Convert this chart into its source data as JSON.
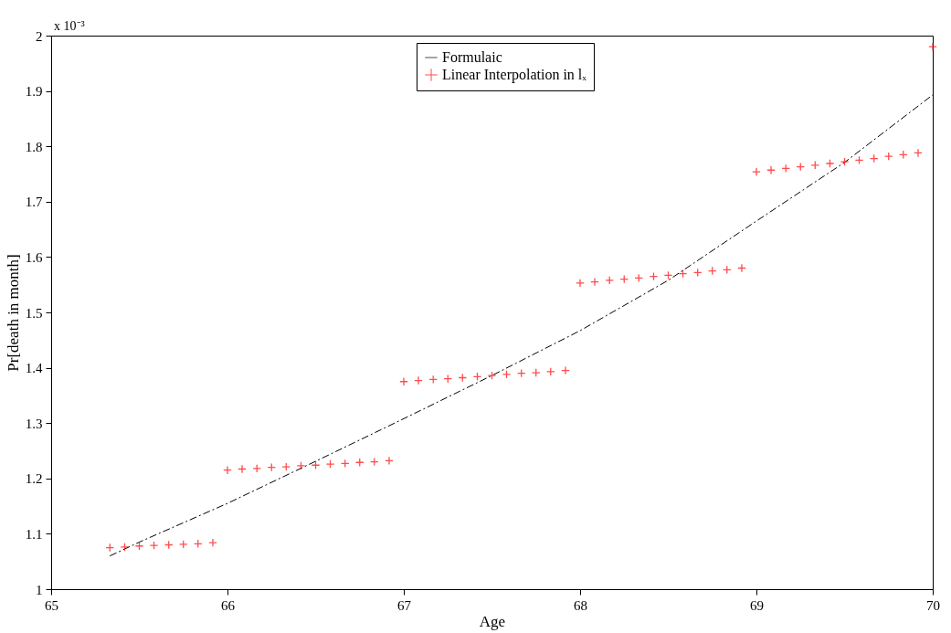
{
  "chart_data": {
    "type": "scatter",
    "xlabel": "Age",
    "ylabel": "Pr[death in month]",
    "annotations": [
      "x 10⁻³"
    ],
    "xlim": [
      65,
      70
    ],
    "xticks": [
      65,
      66,
      67,
      68,
      69,
      70
    ],
    "ylim": [
      1,
      2
    ],
    "yticks": [
      1,
      1.1,
      1.2,
      1.3,
      1.4,
      1.5,
      1.6,
      1.7,
      1.8,
      1.9,
      2
    ],
    "grid": false,
    "legend": "top",
    "series": [
      {
        "name": "Formulaic",
        "type": "line",
        "line_style": "dashed",
        "marker": "none",
        "color": "#000000",
        "x": [
          65.333,
          65.5,
          66,
          66.5,
          67,
          67.5,
          68,
          68.5,
          69,
          69.5,
          70
        ],
        "values": [
          1.06,
          1.085,
          1.155,
          1.231,
          1.308,
          1.386,
          1.467,
          1.558,
          1.665,
          1.771,
          1.893
        ]
      },
      {
        "name": "Linear Interpolation in lₓ",
        "marker": "cross",
        "color": "#ff0000",
        "x": [
          65.333,
          65.417,
          65.5,
          65.583,
          65.667,
          65.75,
          65.833,
          65.917,
          66,
          66.083,
          66.167,
          66.25,
          66.333,
          66.417,
          66.5,
          66.583,
          66.667,
          66.75,
          66.833,
          66.917,
          67,
          67.083,
          67.167,
          67.25,
          67.333,
          67.417,
          67.5,
          67.583,
          67.667,
          67.75,
          67.833,
          67.917,
          68,
          68.083,
          68.167,
          68.25,
          68.333,
          68.417,
          68.5,
          68.583,
          68.667,
          68.75,
          68.833,
          68.917,
          69,
          69.083,
          69.167,
          69.25,
          69.333,
          69.417,
          69.5,
          69.583,
          69.667,
          69.75,
          69.833,
          69.917,
          70
        ],
        "values": [
          1.075,
          1.076,
          1.078,
          1.079,
          1.08,
          1.081,
          1.082,
          1.084,
          1.215,
          1.217,
          1.218,
          1.22,
          1.221,
          1.223,
          1.224,
          1.226,
          1.227,
          1.229,
          1.23,
          1.232,
          1.375,
          1.377,
          1.379,
          1.38,
          1.382,
          1.384,
          1.386,
          1.388,
          1.39,
          1.391,
          1.393,
          1.395,
          1.553,
          1.555,
          1.558,
          1.56,
          1.562,
          1.565,
          1.567,
          1.57,
          1.572,
          1.575,
          1.577,
          1.58,
          1.754,
          1.757,
          1.76,
          1.763,
          1.766,
          1.769,
          1.772,
          1.775,
          1.778,
          1.782,
          1.785,
          1.788,
          1.98
        ]
      }
    ]
  }
}
